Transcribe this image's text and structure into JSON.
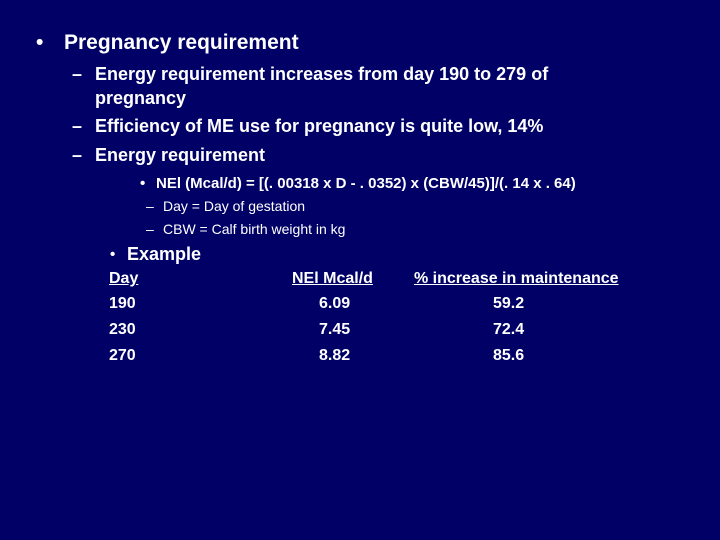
{
  "slide": {
    "bullet_main": "Pregnancy requirement",
    "sub_bullets": [
      "Energy requirement increases from day 190 to 279 of",
      "pregnancy",
      "Efficiency of ME use for pregnancy is quite low, 14%",
      "Energy requirement"
    ],
    "formula": "NEl (Mcal/d) = [(. 00318 x D - . 0352) x (CBW/45)]/(. 14 x . 64)",
    "definitions": [
      "Day = Day of gestation",
      "CBW = Calf birth weight in kg"
    ],
    "example_label": "Example",
    "table": {
      "headers": [
        "Day",
        "NEl Mcal/d",
        "% increase in maintenance"
      ],
      "rows": [
        [
          "190",
          "6.09",
          "59.2"
        ],
        [
          "230",
          "7.45",
          "72.4"
        ],
        [
          "270",
          "8.82",
          "85.6"
        ]
      ]
    },
    "glyphs": {
      "bullet": "•",
      "dash": "–"
    },
    "colors": {
      "background": "#000066",
      "text": "#ffffff"
    }
  }
}
